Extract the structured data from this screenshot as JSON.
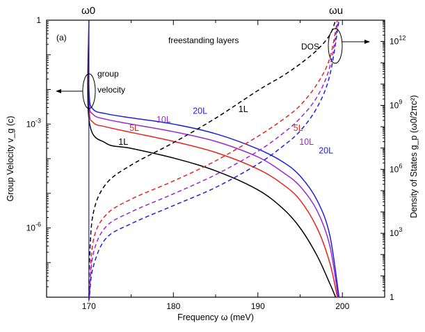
{
  "chart_data": {
    "type": "line",
    "panel_label": "(a)",
    "title": "freestanding layers",
    "top_labels": [
      "ω0",
      "ωu"
    ],
    "xlabel": "Frequency ω (meV)",
    "ylabel_left": "Group Velocity v_g (c)",
    "ylabel_right": "Density of States g_p (ω0/2πc²)",
    "xlim": [
      165,
      205
    ],
    "ylim_left_log10": [
      -8,
      0
    ],
    "ylim_right_log10": [
      0,
      13
    ],
    "x_ticks": [
      170,
      180,
      190,
      200
    ],
    "y_left_ticks": [
      {
        "exp": 0,
        "label": "1"
      },
      {
        "exp": -3,
        "label": "10",
        "sup": "-3"
      },
      {
        "exp": -6,
        "label": "10",
        "sup": "-6"
      }
    ],
    "y_right_ticks": [
      {
        "exp": 0,
        "label": "1"
      },
      {
        "exp": 3,
        "label": "10",
        "sup": "3"
      },
      {
        "exp": 6,
        "label": "10",
        "sup": "6"
      },
      {
        "exp": 9,
        "label": "10",
        "sup": "9"
      },
      {
        "exp": 12,
        "label": "10",
        "sup": "12"
      }
    ],
    "omega0": 170,
    "omegau": 199.7,
    "annotations": {
      "group_velocity": [
        "group",
        "velocity"
      ],
      "dos": "DOS"
    },
    "series": [
      {
        "name": "1L",
        "group": "group velocity",
        "color": "#000000",
        "style": "solid",
        "points": [
          [
            170.03,
            -2.9
          ],
          [
            172,
            -3.55
          ],
          [
            175,
            -3.7
          ],
          [
            180,
            -3.98
          ],
          [
            185,
            -4.35
          ],
          [
            190,
            -4.9
          ],
          [
            193,
            -5.45
          ],
          [
            195,
            -6.0
          ],
          [
            197,
            -6.8
          ],
          [
            198.5,
            -7.6
          ],
          [
            199.2,
            -8.0
          ]
        ]
      },
      {
        "name": "5L",
        "group": "group velocity",
        "color": "#e8231f",
        "style": "solid",
        "points": [
          [
            170.03,
            -2.5
          ],
          [
            170.5,
            -2.95
          ],
          [
            172,
            -3.08
          ],
          [
            175,
            -3.24
          ],
          [
            180,
            -3.5
          ],
          [
            185,
            -3.82
          ],
          [
            190,
            -4.3
          ],
          [
            193,
            -4.75
          ],
          [
            195,
            -5.2
          ],
          [
            197,
            -6.0
          ],
          [
            198.5,
            -7.0
          ],
          [
            199.4,
            -8.0
          ]
        ]
      },
      {
        "name": "10L",
        "group": "group velocity",
        "color": "#9b27d1",
        "style": "solid",
        "points": [
          [
            170.03,
            -2.3
          ],
          [
            170.5,
            -2.72
          ],
          [
            172,
            -2.86
          ],
          [
            175,
            -3.0
          ],
          [
            180,
            -3.22
          ],
          [
            185,
            -3.5
          ],
          [
            190,
            -3.95
          ],
          [
            193,
            -4.4
          ],
          [
            195,
            -4.8
          ],
          [
            197,
            -5.5
          ],
          [
            198.5,
            -6.5
          ],
          [
            199.5,
            -8.0
          ]
        ]
      },
      {
        "name": "20L",
        "group": "group velocity",
        "color": "#1f1fe0",
        "style": "solid",
        "points": [
          [
            170.03,
            -2.1
          ],
          [
            170.5,
            -2.57
          ],
          [
            172,
            -2.7
          ],
          [
            175,
            -2.82
          ],
          [
            180,
            -3.0
          ],
          [
            185,
            -3.28
          ],
          [
            190,
            -3.72
          ],
          [
            193,
            -4.1
          ],
          [
            195,
            -4.5
          ],
          [
            197,
            -5.2
          ],
          [
            198.5,
            -6.2
          ],
          [
            199.6,
            -8.0
          ]
        ]
      },
      {
        "name": "1L",
        "group": "DOS",
        "color": "#000000",
        "style": "dashed",
        "points": [
          [
            170.05,
            1.5
          ],
          [
            170.5,
            3.9
          ],
          [
            172,
            5.3
          ],
          [
            175,
            6.2
          ],
          [
            180,
            7.25
          ],
          [
            185,
            8.4
          ],
          [
            190,
            9.7
          ],
          [
            193,
            10.4
          ],
          [
            195,
            10.95
          ],
          [
            197,
            11.6
          ],
          [
            198.5,
            12.3
          ],
          [
            199.2,
            13.0
          ]
        ]
      },
      {
        "name": "5L",
        "group": "DOS",
        "color": "#e8231f",
        "style": "dashed",
        "points": [
          [
            170.05,
            0.0
          ],
          [
            170.5,
            2.6
          ],
          [
            172,
            3.85
          ],
          [
            175,
            4.6
          ],
          [
            180,
            5.45
          ],
          [
            185,
            6.4
          ],
          [
            190,
            7.55
          ],
          [
            193,
            8.35
          ],
          [
            195,
            9.0
          ],
          [
            197,
            10.0
          ],
          [
            198.5,
            11.2
          ],
          [
            199.4,
            13.0
          ]
        ]
      },
      {
        "name": "10L",
        "group": "DOS",
        "color": "#9b27d1",
        "style": "dashed",
        "points": [
          [
            170.05,
            0.0
          ],
          [
            170.5,
            2.0
          ],
          [
            172,
            3.3
          ],
          [
            175,
            4.0
          ],
          [
            180,
            4.85
          ],
          [
            185,
            5.75
          ],
          [
            190,
            6.85
          ],
          [
            193,
            7.7
          ],
          [
            195,
            8.4
          ],
          [
            197,
            9.4
          ],
          [
            198.5,
            10.8
          ],
          [
            199.5,
            13.0
          ]
        ]
      },
      {
        "name": "20L",
        "group": "DOS",
        "color": "#1f1fe0",
        "style": "dashed",
        "points": [
          [
            170.05,
            0.0
          ],
          [
            170.5,
            1.4
          ],
          [
            172,
            2.75
          ],
          [
            175,
            3.45
          ],
          [
            180,
            4.3
          ],
          [
            185,
            5.15
          ],
          [
            190,
            6.25
          ],
          [
            193,
            7.1
          ],
          [
            195,
            7.8
          ],
          [
            197,
            8.9
          ],
          [
            198.5,
            10.4
          ],
          [
            199.6,
            13.0
          ]
        ]
      }
    ],
    "series_labels": [
      {
        "text": "20L",
        "color": "#1f1fe0",
        "x": 182.3,
        "y_left": -2.7
      },
      {
        "text": "10L",
        "color": "#9b27d1",
        "x": 178.0,
        "y_left": -2.95
      },
      {
        "text": "5L",
        "color": "#e8231f",
        "x": 174.8,
        "y_left": -3.2
      },
      {
        "text": "1L",
        "color": "#000000",
        "x": 173.5,
        "y_left": -3.6
      },
      {
        "text": "1L",
        "color": "#000000",
        "x": 187.7,
        "y_left": -2.65
      },
      {
        "text": "5L",
        "color": "#e8231f",
        "x": 194.2,
        "y_left": -3.2
      },
      {
        "text": "10L",
        "color": "#9b27d1",
        "x": 194.9,
        "y_left": -3.6
      },
      {
        "text": "20L",
        "color": "#1f1fe0",
        "x": 197.2,
        "y_left": -3.85
      }
    ]
  }
}
